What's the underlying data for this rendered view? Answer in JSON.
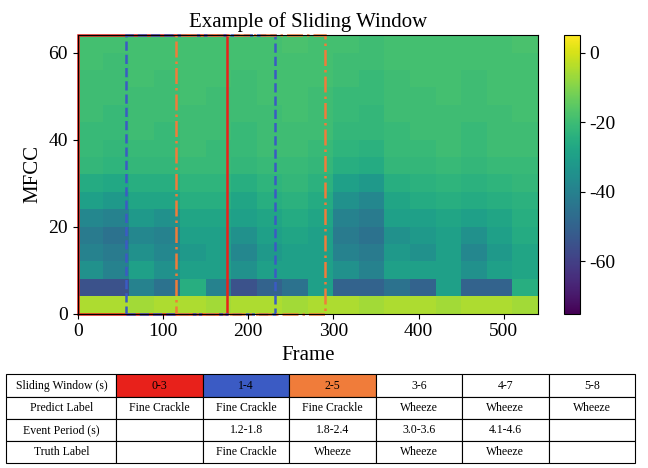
{
  "chart_data": {
    "type": "heatmap",
    "title": "Example of Sliding Window",
    "x_label": "Frame",
    "y_label": "MFCC",
    "xlim": [
      0,
      540
    ],
    "ylim": [
      0,
      64
    ],
    "xticks": [
      0,
      100,
      200,
      300,
      400,
      500
    ],
    "yticks": [
      0,
      20,
      40,
      60
    ],
    "x_edges": [
      0,
      30,
      60,
      90,
      120,
      150,
      180,
      210,
      240,
      270,
      300,
      330,
      360,
      390,
      420,
      450,
      480,
      510,
      540
    ],
    "y_edges": [
      0,
      4,
      8,
      12,
      16,
      20,
      24,
      28,
      32,
      36,
      40,
      44,
      48,
      52,
      56,
      60,
      64
    ],
    "cells": [
      [
        -5,
        -5,
        -6,
        -5,
        -5,
        -6,
        -5,
        -5,
        -6,
        -5,
        -5,
        -6,
        -5,
        -5,
        -6,
        -5,
        -5,
        -6
      ],
      [
        -55,
        -55,
        -40,
        -45,
        -25,
        -40,
        -55,
        -50,
        -45,
        -30,
        -50,
        -50,
        -45,
        -50,
        -30,
        -50,
        -50,
        -25
      ],
      [
        -35,
        -40,
        -30,
        -35,
        -30,
        -30,
        -35,
        -30,
        -30,
        -30,
        -35,
        -40,
        -30,
        -30,
        -30,
        -35,
        -30,
        -28
      ],
      [
        -40,
        -42,
        -35,
        -38,
        -32,
        -30,
        -38,
        -32,
        -30,
        -30,
        -40,
        -42,
        -32,
        -35,
        -30,
        -38,
        -32,
        -28
      ],
      [
        -42,
        -45,
        -38,
        -40,
        -30,
        -30,
        -35,
        -30,
        -28,
        -30,
        -42,
        -45,
        -35,
        -32,
        -30,
        -35,
        -30,
        -26
      ],
      [
        -38,
        -40,
        -32,
        -35,
        -28,
        -28,
        -30,
        -28,
        -26,
        -28,
        -40,
        -42,
        -30,
        -30,
        -28,
        -30,
        -28,
        -25
      ],
      [
        -30,
        -32,
        -28,
        -28,
        -25,
        -25,
        -28,
        -25,
        -24,
        -26,
        -35,
        -38,
        -28,
        -26,
        -25,
        -26,
        -25,
        -24
      ],
      [
        -26,
        -27,
        -25,
        -25,
        -23,
        -23,
        -25,
        -23,
        -22,
        -24,
        -30,
        -32,
        -25,
        -24,
        -23,
        -24,
        -23,
        -22
      ],
      [
        -22,
        -23,
        -22,
        -22,
        -21,
        -21,
        -22,
        -21,
        -21,
        -22,
        -25,
        -26,
        -22,
        -22,
        -21,
        -22,
        -21,
        -21
      ],
      [
        -21,
        -22,
        -21,
        -21,
        -20,
        -21,
        -21,
        -20,
        -20,
        -21,
        -23,
        -24,
        -21,
        -21,
        -20,
        -21,
        -20,
        -20
      ],
      [
        -21,
        -21,
        -20,
        -21,
        -20,
        -20,
        -21,
        -20,
        -20,
        -20,
        -22,
        -22,
        -21,
        -20,
        -20,
        -21,
        -20,
        -20
      ],
      [
        -20,
        -21,
        -20,
        -20,
        -20,
        -20,
        -20,
        -20,
        -19,
        -20,
        -21,
        -22,
        -20,
        -20,
        -20,
        -20,
        -20,
        -19
      ],
      [
        -20,
        -20,
        -20,
        -20,
        -19,
        -20,
        -20,
        -19,
        -19,
        -20,
        -21,
        -21,
        -20,
        -20,
        -19,
        -20,
        -19,
        -19
      ],
      [
        -20,
        -20,
        -19,
        -20,
        -19,
        -19,
        -20,
        -19,
        -19,
        -19,
        -20,
        -21,
        -20,
        -19,
        -19,
        -20,
        -19,
        -19
      ],
      [
        -19,
        -20,
        -19,
        -19,
        -19,
        -19,
        -19,
        -19,
        -19,
        -19,
        -20,
        -20,
        -19,
        -19,
        -19,
        -19,
        -19,
        -19
      ],
      [
        -19,
        -19,
        -19,
        -19,
        -19,
        -19,
        -19,
        -19,
        -18,
        -19,
        -19,
        -20,
        -19,
        -19,
        -19,
        -19,
        -19,
        -18
      ]
    ],
    "colorbar_range": [
      -75,
      5
    ],
    "colorbar_ticks": [
      -60,
      -40,
      -20,
      0
    ],
    "windows": [
      {
        "label": "0-3",
        "start_frame": 0,
        "end_frame": 175,
        "color": "#e8211b",
        "line_style": "solid"
      },
      {
        "label": "1-4",
        "start_frame": 57,
        "end_frame": 232,
        "color": "#3b5bc4",
        "line_style": "dashed"
      },
      {
        "label": "2-5",
        "start_frame": 115,
        "end_frame": 290,
        "color": "#f07c3a",
        "line_style": "dashdot"
      }
    ]
  },
  "table": {
    "rows": [
      [
        "Sliding Window (s)",
        "0-3",
        "1-4",
        "2-5",
        "3-6",
        "4-7",
        "5-8"
      ],
      [
        "Predict Label",
        "Fine Crackle",
        "Fine Crackle",
        "Fine Crackle",
        "Wheeze",
        "Wheeze",
        "Wheeze"
      ],
      [
        "Event Period (s)",
        null,
        "1.2-1.8",
        "1.8-2.4",
        "3.0-3.6",
        "4.1-4.6",
        null
      ],
      [
        "Truth Label",
        null,
        "Fine Crackle",
        "Wheeze",
        "Wheeze",
        "Wheeze",
        null
      ]
    ],
    "header_colors": [
      null,
      "#e8211b",
      "#3b5bc4",
      "#f07c3a",
      null,
      null,
      null
    ]
  }
}
